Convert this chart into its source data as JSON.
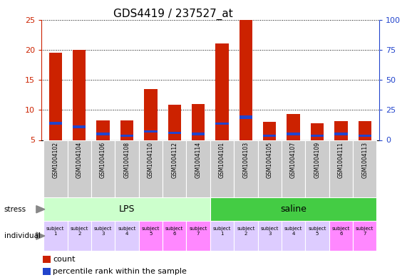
{
  "title": "GDS4419 / 237527_at",
  "samples": [
    "GSM1004102",
    "GSM1004104",
    "GSM1004106",
    "GSM1004108",
    "GSM1004110",
    "GSM1004112",
    "GSM1004114",
    "GSM1004101",
    "GSM1004103",
    "GSM1004105",
    "GSM1004107",
    "GSM1004109",
    "GSM1004111",
    "GSM1004113"
  ],
  "count_values": [
    19.5,
    20.0,
    8.2,
    8.2,
    13.5,
    10.8,
    11.0,
    21.0,
    25.0,
    8.0,
    9.3,
    7.8,
    8.1,
    8.1
  ],
  "percentile_values": [
    7.5,
    7.0,
    5.8,
    5.5,
    6.2,
    6.0,
    5.8,
    7.5,
    8.5,
    5.5,
    5.8,
    5.5,
    5.8,
    5.5
  ],
  "blue_bar_heights": [
    0.5,
    0.45,
    0.4,
    0.35,
    0.45,
    0.42,
    0.42,
    0.45,
    0.6,
    0.4,
    0.45,
    0.35,
    0.42,
    0.35
  ],
  "bar_bottom": 5.0,
  "ylim_left": [
    5,
    25
  ],
  "ylim_right": [
    0,
    100
  ],
  "yticks_left": [
    5,
    10,
    15,
    20,
    25
  ],
  "yticks_right": [
    0,
    25,
    50,
    75,
    100
  ],
  "stress_groups": [
    {
      "label": "LPS",
      "start": 0,
      "end": 7,
      "color": "#ccffcc"
    },
    {
      "label": "saline",
      "start": 7,
      "end": 14,
      "color": "#44cc44"
    }
  ],
  "individual_colors_lps": [
    "#ddccff",
    "#ddccff",
    "#ddccff",
    "#ddccff",
    "#ff88ff",
    "#ff88ff",
    "#ff88ff"
  ],
  "individual_colors_saline": [
    "#ddccff",
    "#ddccff",
    "#ddccff",
    "#ddccff",
    "#ddccff",
    "#ff88ff",
    "#ff88ff"
  ],
  "bar_color_red": "#cc2200",
  "bar_color_blue": "#2244cc",
  "xtick_bg": "#cccccc",
  "legend_count_label": "count",
  "legend_pct_label": "percentile rank within the sample",
  "stress_label": "stress",
  "individual_label": "individual",
  "title_fontsize": 11,
  "axis_color_left": "#cc2200",
  "axis_color_right": "#2244cc",
  "fig_width": 5.78,
  "fig_height": 3.93,
  "dpi": 100
}
